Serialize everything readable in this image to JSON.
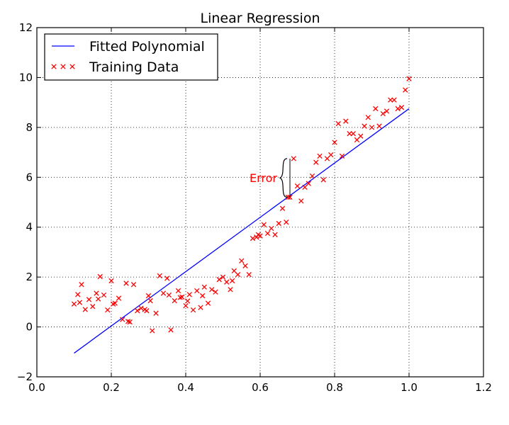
{
  "chart_data": {
    "type": "scatter",
    "title": "Linear Regression",
    "xlabel": "",
    "ylabel": "",
    "xlim": [
      0.0,
      1.2
    ],
    "ylim": [
      -2,
      12
    ],
    "xticks": [
      "0.0",
      "0.2",
      "0.4",
      "0.6",
      "0.8",
      "1.0",
      "1.2"
    ],
    "yticks": [
      "−2",
      "0",
      "2",
      "4",
      "6",
      "8",
      "10",
      "12"
    ],
    "grid": true,
    "legend_position": "top-left",
    "series": [
      {
        "name": "Fitted Polynomial",
        "kind": "line",
        "color": "#0000ff",
        "x": [
          0.1,
          1.0
        ],
        "y": [
          -1.05,
          8.75
        ]
      },
      {
        "name": "Training Data",
        "kind": "scatter",
        "marker": "x",
        "color": "#ff0000",
        "x": [
          0.1,
          0.11,
          0.12,
          0.13,
          0.14,
          0.15,
          0.16,
          0.17,
          0.18,
          0.19,
          0.2,
          0.21,
          0.22,
          0.23,
          0.24,
          0.25,
          0.26,
          0.27,
          0.28,
          0.29,
          0.3,
          0.31,
          0.32,
          0.33,
          0.34,
          0.35,
          0.36,
          0.37,
          0.38,
          0.39,
          0.4,
          0.41,
          0.42,
          0.43,
          0.44,
          0.45,
          0.46,
          0.47,
          0.48,
          0.49,
          0.5,
          0.51,
          0.52,
          0.53,
          0.54,
          0.55,
          0.56,
          0.57,
          0.58,
          0.59,
          0.6,
          0.61,
          0.62,
          0.63,
          0.64,
          0.65,
          0.66,
          0.67,
          0.68,
          0.69,
          0.7,
          0.71,
          0.72,
          0.73,
          0.74,
          0.75,
          0.76,
          0.77,
          0.78,
          0.79,
          0.8,
          0.81,
          0.82,
          0.83,
          0.84,
          0.85,
          0.86,
          0.87,
          0.88,
          0.89,
          0.9,
          0.91,
          0.92,
          0.93,
          0.94,
          0.95,
          0.96,
          0.97,
          0.98,
          0.99,
          1.0,
          0.115,
          0.165,
          0.205,
          0.245,
          0.295,
          0.305,
          0.355,
          0.385,
          0.405,
          0.445,
          0.525,
          0.595,
          0.675
        ],
        "y": [
          0.92,
          1.3,
          1.7,
          0.7,
          1.1,
          0.82,
          1.35,
          2.02,
          1.28,
          0.68,
          1.85,
          0.95,
          1.15,
          0.3,
          1.75,
          0.2,
          1.7,
          0.65,
          0.75,
          0.7,
          1.25,
          -0.15,
          0.55,
          2.05,
          1.35,
          1.95,
          -0.12,
          1.05,
          1.45,
          1.2,
          0.85,
          1.3,
          0.68,
          1.45,
          0.78,
          1.6,
          0.95,
          1.5,
          1.4,
          1.9,
          2.0,
          1.8,
          1.5,
          2.25,
          2.1,
          2.65,
          2.45,
          2.1,
          3.55,
          3.6,
          3.65,
          4.1,
          3.75,
          3.95,
          3.7,
          4.15,
          4.75,
          4.2,
          5.2,
          6.75,
          5.65,
          5.05,
          5.6,
          5.75,
          6.05,
          6.6,
          6.85,
          5.9,
          6.75,
          6.9,
          7.4,
          8.15,
          6.85,
          8.25,
          7.75,
          7.75,
          7.5,
          7.65,
          8.05,
          8.4,
          8.0,
          8.75,
          8.05,
          8.55,
          8.65,
          9.1,
          9.1,
          8.75,
          8.8,
          9.5,
          9.95,
          0.98,
          1.12,
          0.92,
          0.22,
          0.65,
          1.05,
          1.28,
          1.18,
          1.04,
          1.25,
          1.85,
          3.7,
          5.2
        ]
      }
    ],
    "annotations": [
      {
        "text": "Error",
        "x": 0.68,
        "y_top": 6.75,
        "y_bottom": 5.2,
        "color": "#ff0000"
      }
    ]
  }
}
